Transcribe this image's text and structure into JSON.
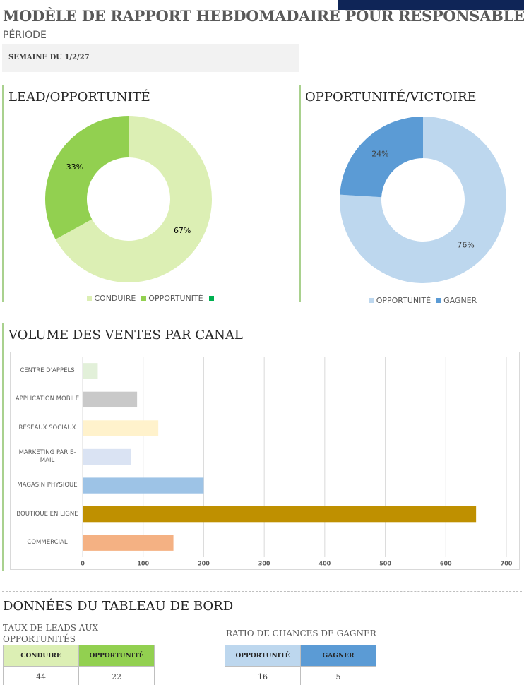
{
  "header": {
    "title": "MODÈLE DE RAPPORT HEBDOMADAIRE POUR RESPONSABLES DES VENTES",
    "period_label": "PÉRIODE",
    "period_value": "SEMAINE DU 1/2/27"
  },
  "chart_data": [
    {
      "type": "donut",
      "title": "LEAD/OPPORTUNITÉ",
      "categories": [
        "CONDUIRE",
        "OPPORTUNITÉ",
        null
      ],
      "values": [
        67,
        33,
        0
      ],
      "value_labels": [
        "67%",
        "33%",
        null
      ],
      "colors": [
        "#dcefb4",
        "#92d050",
        "#00b050"
      ],
      "label_color": "#000000",
      "legend": "bottom"
    },
    {
      "type": "donut",
      "title": "OPPORTUNITÉ/VICTOIRE",
      "categories": [
        "OPPORTUNITÉ",
        "GAGNER"
      ],
      "values": [
        76,
        24
      ],
      "value_labels": [
        "76%",
        "24%"
      ],
      "colors": [
        "#bdd7ee",
        "#5b9bd5"
      ],
      "label_color": "#404040",
      "legend": "bottom"
    },
    {
      "type": "hbar",
      "title": "VOLUME DES VENTES PAR CANAL",
      "categories": [
        "CENTRE D'APPELS",
        "APPLICATION MOBILE",
        "RÉSEAUX SOCIAUX",
        "MARKETING PAR E-MAIL",
        "MAGASIN PHYSIQUE",
        "BOUTIQUE EN LIGNE",
        "COMMERCIAL"
      ],
      "values": [
        25,
        90,
        125,
        80,
        200,
        650,
        150
      ],
      "colors": [
        "#e2f0d9",
        "#c9c9c9",
        "#fff2cc",
        "#dae3f3",
        "#9dc3e6",
        "#bf9000",
        "#f4b183"
      ],
      "xlim": [
        0,
        700
      ],
      "xticks": [
        0,
        100,
        200,
        300,
        400,
        500,
        600,
        700
      ],
      "grid": true
    }
  ],
  "dashboard": {
    "title": "DONNÉES DU TABLEAU DE BORD",
    "tables": [
      {
        "title": "TAUX DE LEADS AUX OPPORTUNITÉS",
        "headers": [
          "CONDUIRE",
          "OPPORTUNITÉ"
        ],
        "rows": [
          [
            44,
            22
          ]
        ]
      },
      {
        "title": "RATIO DE CHANCES DE GAGNER",
        "headers": [
          "OPPORTUNITÉ",
          "GAGNER"
        ],
        "rows": [
          [
            16,
            5
          ]
        ]
      }
    ]
  }
}
